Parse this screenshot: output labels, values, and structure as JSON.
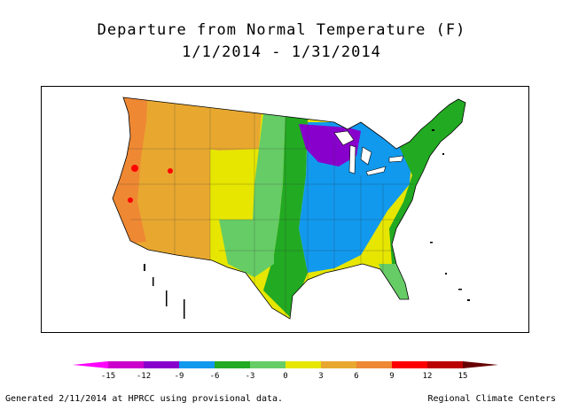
{
  "title": {
    "line1": "Departure from Normal Temperature (F)",
    "line2": "1/1/2014 - 1/31/2014"
  },
  "map": {
    "region": "Contiguous United States",
    "regions": [
      {
        "name": "Pacific Coast / California",
        "departure_f": 9,
        "color": "#ee8833"
      },
      {
        "name": "Great Basin / Intermountain West",
        "departure_f": 6,
        "color": "#e8a830"
      },
      {
        "name": "Northern Rockies",
        "departure_f": 6,
        "color": "#e8a830"
      },
      {
        "name": "Southwest",
        "departure_f": 3,
        "color": "#e6e600"
      },
      {
        "name": "Central Rockies / High Plains",
        "departure_f": 3,
        "color": "#e6e600"
      },
      {
        "name": "Southern Plains / Texas",
        "departure_f": 0,
        "color": "#66cc66"
      },
      {
        "name": "Northern Plains",
        "departure_f": -3,
        "color": "#22aa22"
      },
      {
        "name": "Upper Midwest / Great Lakes",
        "departure_f": -9,
        "color": "#8800cc"
      },
      {
        "name": "Ohio Valley / Midwest",
        "departure_f": -6,
        "color": "#1199ee"
      },
      {
        "name": "Southeast",
        "departure_f": -6,
        "color": "#1199ee"
      },
      {
        "name": "Northeast / Atlantic Coast",
        "departure_f": -3,
        "color": "#22aa22"
      },
      {
        "name": "Florida",
        "departure_f": 0,
        "color": "#66cc66"
      }
    ]
  },
  "legend": {
    "labels": [
      "-15",
      "-12",
      "-9",
      "-6",
      "-3",
      "0",
      "3",
      "6",
      "9",
      "12",
      "15"
    ],
    "colors": [
      "#ff00ff",
      "#cc00cc",
      "#8800cc",
      "#1199ee",
      "#22aa22",
      "#66cc66",
      "#e6e600",
      "#e8a830",
      "#ee8833",
      "#ff0000",
      "#bb0000",
      "#660000"
    ]
  },
  "footer": {
    "left": "Generated 2/11/2014 at HPRCC using provisional data.",
    "right": "Regional Climate Centers"
  }
}
